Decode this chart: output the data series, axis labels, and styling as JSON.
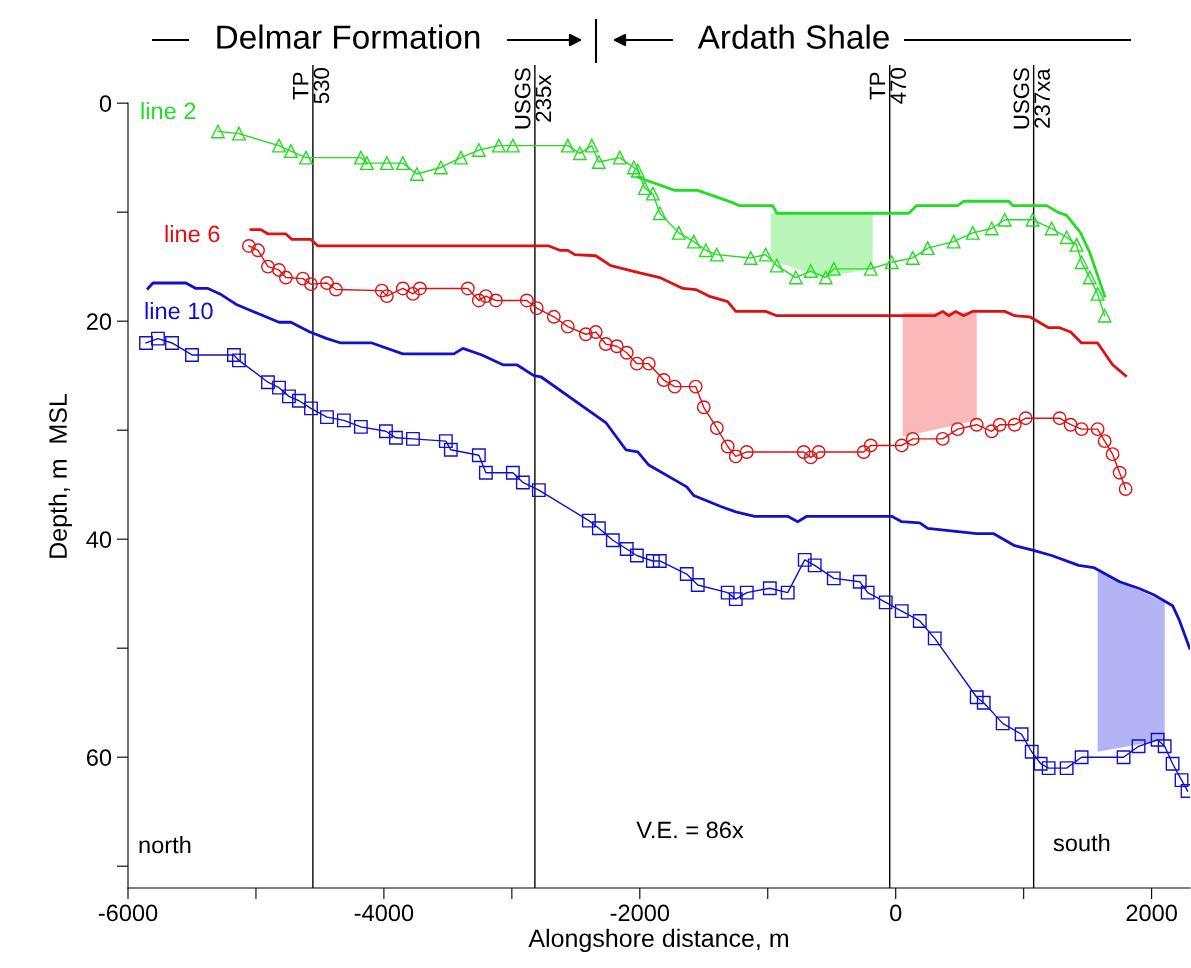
{
  "chart_data": {
    "type": "line",
    "xlabel": "Alongshore distance, m",
    "ylabel": "Depth, m  MSL",
    "xlim": [
      -6000,
      2300
    ],
    "xticks": [
      -6000,
      {
        "value": -5000,
        "label": null
      },
      -4000,
      {
        "value": -3000,
        "label": null
      },
      -2000,
      {
        "value": -1000,
        "label": null
      },
      0,
      {
        "value": 1000,
        "label": null
      },
      2000
    ],
    "ylim": [
      72,
      -3.5
    ],
    "yticks": [
      0,
      {
        "value": 10,
        "label": null
      },
      20,
      {
        "value": 30,
        "label": null
      },
      40,
      {
        "value": 50,
        "label": null
      },
      60,
      {
        "value": 70,
        "label": null
      }
    ],
    "annotations": [
      "Delmar Formation",
      "Ardath Shale",
      "north",
      "south",
      "V.E. = 86x"
    ],
    "ref_lines": [
      {
        "axis": "x",
        "value": -4555,
        "label": "TP\n530"
      },
      {
        "axis": "x",
        "value": -2820,
        "label": "USGS\n235x"
      },
      {
        "axis": "x",
        "value": -47,
        "label": "TP\n470"
      },
      {
        "axis": "x",
        "value": 1078,
        "label": "USGS\n237xa"
      }
    ],
    "series": [
      {
        "type": "area",
        "color": "#b9f5b9",
        "x": [
          -977,
          -580,
          -180
        ],
        "values": [
          null,
          null,
          null
        ],
        "lower": [
          10.1,
          10.1,
          10.1
        ],
        "upper": [
          14.4,
          16.0,
          15.2
        ]
      },
      {
        "type": "area",
        "color": "#fbb8b8",
        "x": [
          55,
          633
        ],
        "values": [
          null,
          null
        ],
        "lower": [
          19.2,
          19.2
        ],
        "upper": [
          30.6,
          29.1
        ]
      },
      {
        "type": "area",
        "color": "#b3b3f5",
        "x": [
          1578,
          2102
        ],
        "values": [
          null,
          null
        ],
        "lower": [
          42.9,
          45.8
        ],
        "upper": [
          59.5,
          58.4
        ]
      },
      {
        "color": "#22dd22",
        "x": [
          -2016,
          -1727,
          -1547,
          -1281,
          -1227,
          -961,
          -930,
          102,
          164,
          484,
          531,
          883,
          914,
          1180,
          1266,
          1336,
          1445,
          1516,
          1578,
          1633
        ],
        "values": [
          6.8,
          8.0,
          8.0,
          9.1,
          9.4,
          9.4,
          10.1,
          10.1,
          9.4,
          9.4,
          9.0,
          9.0,
          9.4,
          9.4,
          10.0,
          10.3,
          11.9,
          13.7,
          15.8,
          17.7
        ]
      },
      {
        "name": "line 2",
        "color": "#22dd22",
        "marker": "triangle",
        "x": [
          -5297,
          -5133,
          -4820,
          -4727,
          -4609,
          -4180,
          -4133,
          -3977,
          -3852,
          -3742,
          -3555,
          -3398,
          -3258,
          -3102,
          -2992,
          -2563,
          -2469,
          -2375,
          -2320,
          -2156,
          -2047,
          -2016,
          -1961,
          -1898,
          -1844,
          -1695,
          -1578,
          -1484,
          -1398,
          -1133,
          -1016,
          -930,
          -781,
          -664,
          -547,
          -484,
          -195,
          -31,
          133,
          250,
          453,
          602,
          750,
          852,
          1070,
          1219,
          1336,
          1414,
          1453,
          1516,
          1578,
          1633
        ],
        "values": [
          2.6,
          2.8,
          3.9,
          4.4,
          5.0,
          5.0,
          5.5,
          5.5,
          5.5,
          6.5,
          5.9,
          5.0,
          4.3,
          3.9,
          3.9,
          3.9,
          4.6,
          3.9,
          5.4,
          5.0,
          5.9,
          6.2,
          7.8,
          8.3,
          10.1,
          11.9,
          12.7,
          13.5,
          13.9,
          14.2,
          13.9,
          14.9,
          16.0,
          15.4,
          16.0,
          15.2,
          15.2,
          14.6,
          14.2,
          13.3,
          12.7,
          11.9,
          11.5,
          10.7,
          10.7,
          11.5,
          12.3,
          13.0,
          14.6,
          16.0,
          17.5,
          19.5
        ]
      },
      {
        "color": "#dd1111",
        "x": [
          -5039,
          -4961,
          -4906,
          -4766,
          -4719,
          -4570,
          -4516,
          -2711,
          -2625,
          -2563,
          -2508,
          -2344,
          -2227,
          -1993,
          -1844,
          -1664,
          -1563,
          -1461,
          -1313,
          -1250,
          -1016,
          -930,
          305,
          367,
          414,
          469,
          531,
          602,
          852,
          930,
          1047,
          1195,
          1281,
          1367,
          1453,
          1578,
          1695,
          1797
        ],
        "values": [
          11.6,
          11.6,
          12.0,
          12.0,
          12.5,
          12.5,
          13.1,
          13.1,
          13.5,
          13.5,
          13.9,
          14.0,
          14.9,
          15.6,
          16.0,
          17.0,
          17.1,
          17.7,
          18.2,
          19.1,
          19.1,
          19.5,
          19.5,
          19.1,
          19.5,
          19.1,
          19.5,
          19.1,
          19.1,
          19.5,
          19.6,
          20.6,
          20.6,
          21.0,
          22.0,
          22.0,
          24.0,
          25.0
        ]
      },
      {
        "name": "line 6",
        "color": "#dd1111",
        "marker": "circle",
        "x": [
          -5055,
          -4984,
          -4906,
          -4820,
          -4766,
          -4633,
          -4570,
          -4445,
          -4375,
          -4016,
          -3977,
          -3852,
          -3773,
          -3719,
          -3344,
          -3258,
          -3203,
          -3125,
          -2883,
          -2805,
          -2672,
          -2563,
          -2422,
          -2344,
          -2266,
          -2180,
          -2102,
          -2023,
          -1930,
          -1813,
          -1727,
          -1563,
          -1500,
          -1398,
          -1313,
          -1250,
          -1164,
          -719,
          -664,
          -602,
          -250,
          -195,
          47,
          133,
          367,
          484,
          633,
          750,
          813,
          930,
          1016,
          1281,
          1367,
          1453,
          1578,
          1633,
          1695,
          1750,
          1797
        ],
        "values": [
          13.1,
          13.5,
          15.0,
          15.3,
          16.0,
          16.1,
          16.6,
          16.5,
          17.1,
          17.2,
          17.7,
          17.0,
          17.5,
          17.0,
          17.0,
          18.1,
          17.7,
          18.1,
          18.1,
          18.8,
          19.6,
          20.5,
          21.2,
          21.0,
          22.1,
          22.3,
          22.9,
          23.9,
          23.9,
          25.4,
          26.0,
          26.0,
          27.9,
          29.8,
          31.5,
          32.4,
          32.0,
          32.0,
          32.5,
          32.0,
          32.0,
          31.4,
          31.4,
          30.8,
          30.8,
          29.9,
          29.5,
          30.1,
          29.5,
          29.5,
          28.9,
          28.9,
          29.5,
          29.9,
          29.9,
          31.0,
          32.2,
          33.9,
          35.4
        ]
      },
      {
        "color": "#1111cc",
        "x": [
          -5844,
          -5805,
          -5547,
          -5469,
          -5375,
          -5281,
          -5148,
          -4984,
          -4820,
          -4727,
          -4578,
          -4445,
          -4336,
          -4094,
          -3852,
          -3453,
          -3383,
          -3234,
          -3070,
          -2961,
          -2828,
          -2773,
          -2266,
          -2109,
          -2016,
          -1930,
          -1633,
          -1578,
          -1367,
          -1250,
          -1102,
          -844,
          -766,
          -695,
          -31,
          47,
          188,
          250,
          633,
          766,
          930,
          1070,
          1219,
          1430,
          1547,
          1750,
          1898,
          2016,
          2164,
          2219,
          2297
        ],
        "values": [
          17.0,
          16.5,
          16.5,
          17.0,
          17.0,
          17.5,
          18.5,
          19.3,
          20.1,
          20.1,
          21.0,
          21.6,
          22.0,
          22.0,
          23.0,
          23.0,
          22.5,
          23.1,
          24.0,
          24.0,
          25.0,
          25.1,
          29.3,
          31.8,
          32.0,
          33.2,
          35.2,
          36.0,
          37.0,
          37.5,
          37.9,
          37.9,
          38.4,
          37.9,
          37.9,
          38.4,
          38.5,
          39.0,
          39.5,
          39.5,
          40.6,
          41.0,
          41.5,
          42.4,
          42.6,
          43.9,
          44.5,
          45.1,
          46.1,
          47.5,
          50.0
        ]
      },
      {
        "name": "line 10",
        "color": "#1111cc",
        "marker": "square",
        "x": [
          -5859,
          -5766,
          -5656,
          -5500,
          -5172,
          -5133,
          -4906,
          -4820,
          -4742,
          -4664,
          -4570,
          -4445,
          -4313,
          -4180,
          -3984,
          -3906,
          -3773,
          -3516,
          -3477,
          -3258,
          -3203,
          -2992,
          -2914,
          -2789,
          -2398,
          -2320,
          -2211,
          -2102,
          -2023,
          -1898,
          -1844,
          -1633,
          -1547,
          -1313,
          -1250,
          -1164,
          -984,
          -844,
          -711,
          -633,
          -484,
          -281,
          -219,
          -78,
          47,
          188,
          305,
          633,
          688,
          836,
          984,
          1063,
          1133,
          1195,
          1336,
          1453,
          1781,
          1898,
          2047,
          2102,
          2164,
          2234,
          2281
        ],
        "values": [
          22.0,
          21.6,
          22.0,
          23.1,
          23.1,
          23.6,
          25.6,
          26.1,
          26.9,
          27.3,
          28.0,
          28.8,
          29.1,
          29.7,
          30.1,
          30.7,
          30.8,
          31.0,
          31.8,
          32.3,
          33.9,
          33.9,
          34.8,
          35.5,
          38.3,
          39.0,
          40.1,
          40.9,
          41.5,
          42.0,
          42.0,
          43.2,
          44.2,
          44.9,
          45.5,
          44.9,
          44.5,
          44.9,
          41.9,
          42.4,
          43.6,
          43.9,
          44.9,
          45.8,
          46.6,
          47.5,
          49.1,
          54.5,
          55.0,
          56.9,
          57.9,
          59.5,
          60.6,
          61.0,
          61.0,
          60.0,
          60.0,
          59.0,
          58.4,
          59.0,
          60.6,
          62.1,
          63.1
        ]
      }
    ]
  }
}
